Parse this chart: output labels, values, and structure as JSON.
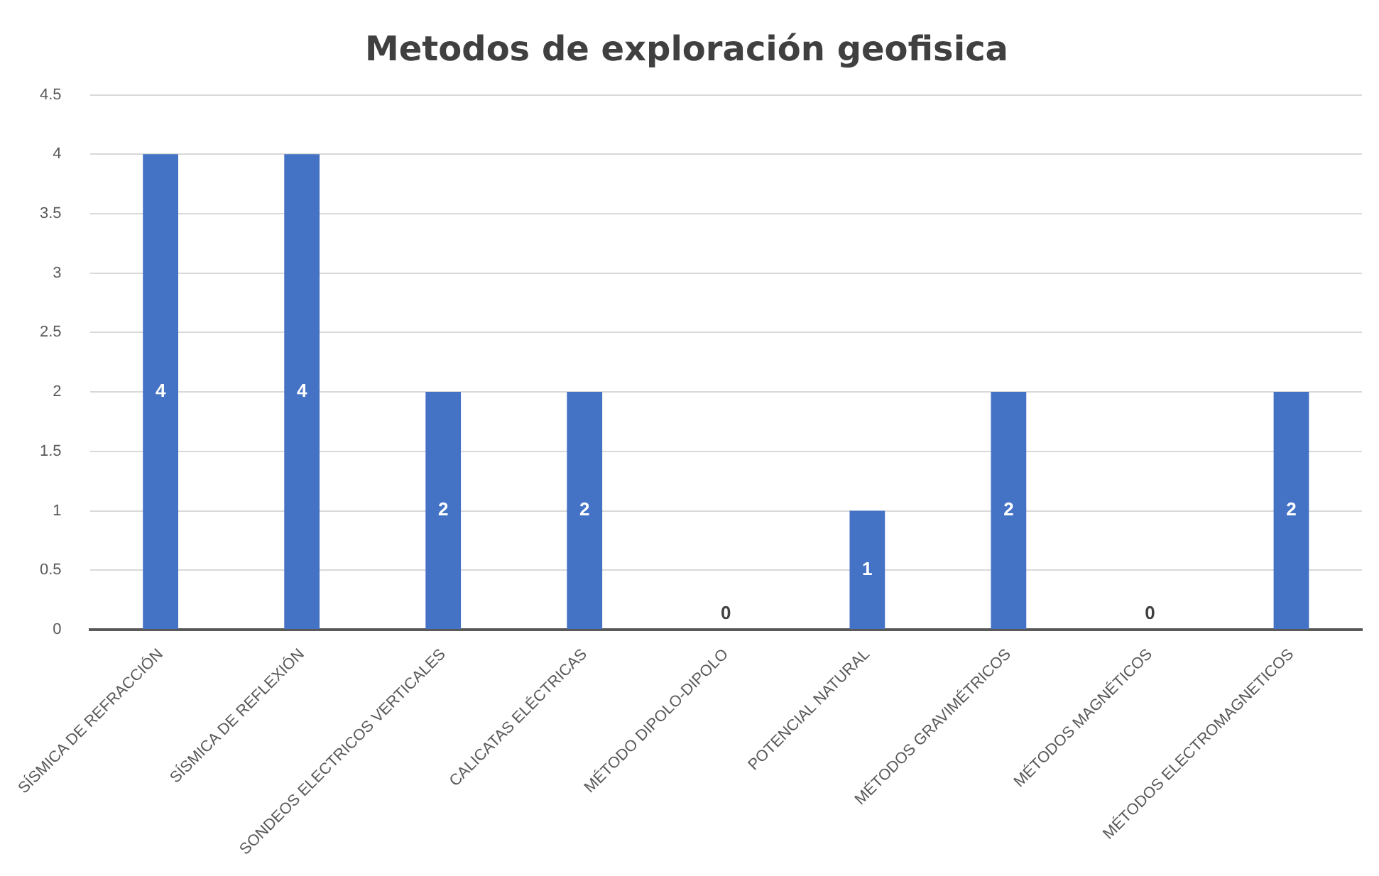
{
  "chart_data": {
    "type": "bar",
    "title": "Metodos de exploración geofisica",
    "categories": [
      "SÍSMICA DE REFRACCIÓN",
      "SÍSMICA DE REFLEXIÓN",
      "SONDEOS ELECTRICOS VERTICALES",
      "CALICATAS ELÉCTRICAS",
      "MÉTODO DIPOLO-DIPOLO",
      "POTENCIAL NATURAL",
      "MÉTODOS GRAVIMÉTRICOS",
      "MÉTODOS MAGNÉTICOS",
      "MÉTODOS ELECTROMAGNETICOS"
    ],
    "values": [
      4,
      4,
      2,
      2,
      0,
      1,
      2,
      0,
      2
    ],
    "color": "#4472c4",
    "ylim": [
      0,
      4.5
    ],
    "yticks": [
      0,
      0.5,
      1,
      1.5,
      2,
      2.5,
      3,
      3.5,
      4,
      4.5
    ],
    "grid": "y",
    "data_labels": true
  }
}
